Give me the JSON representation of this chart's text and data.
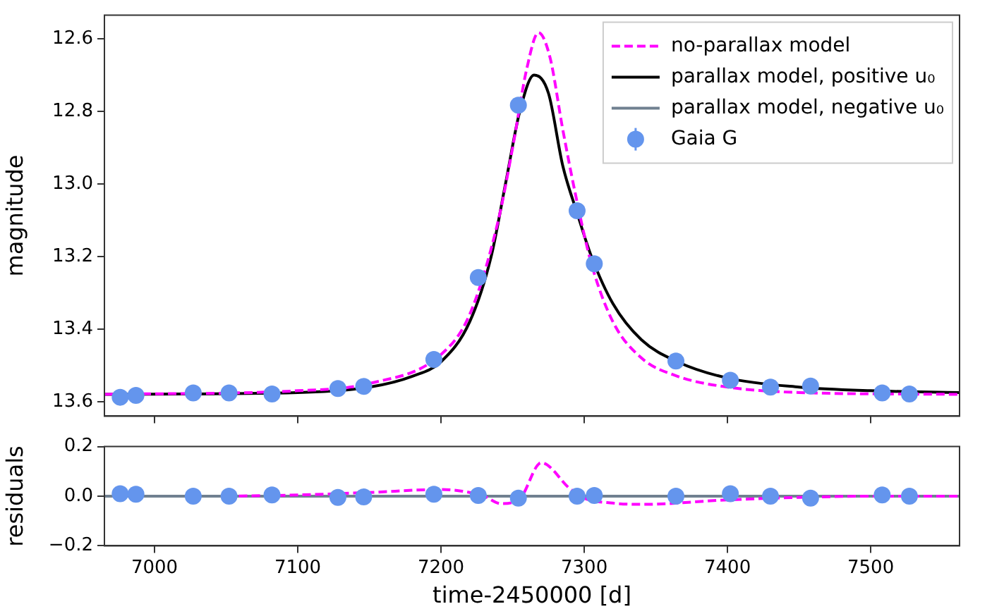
{
  "chart_data": [
    {
      "type": "line",
      "ylabel": "magnitude",
      "xlim": [
        6965,
        7562
      ],
      "ylim": [
        13.64,
        12.535
      ],
      "xticks": [
        7000,
        7100,
        7200,
        7300,
        7400,
        7500
      ],
      "yticks": [
        12.6,
        12.8,
        {
          "value": 13.0,
          "label": "13.0"
        },
        13.2,
        13.4,
        13.6
      ],
      "tick_labels": "y",
      "grid": false,
      "legend": "top right",
      "series": [
        {
          "name": "no-parallax model",
          "color": "#ff00ff",
          "line_style": "dashed",
          "marker": "none",
          "x": [
            6965,
            7100,
            7150,
            7200,
            7220,
            7240,
            7250,
            7260,
            7268,
            7276,
            7285,
            7295,
            7305,
            7320,
            7340,
            7365,
            7400,
            7450,
            7562
          ],
          "values": [
            13.58,
            13.57,
            13.55,
            13.47,
            13.36,
            13.1,
            12.9,
            12.68,
            12.583,
            12.65,
            12.85,
            13.05,
            13.22,
            13.38,
            13.48,
            13.53,
            13.56,
            13.575,
            13.58
          ]
        },
        {
          "name": "parallax model, positive u₀",
          "color": "#000000",
          "line_style": "solid",
          "marker": "none",
          "x": [
            6965,
            7100,
            7150,
            7180,
            7200,
            7220,
            7235,
            7245,
            7255,
            7265,
            7275,
            7285,
            7295,
            7305,
            7320,
            7340,
            7365,
            7400,
            7450,
            7500,
            7562
          ],
          "values": [
            13.58,
            13.575,
            13.56,
            13.53,
            13.49,
            13.38,
            13.2,
            13.0,
            12.8,
            12.7,
            12.75,
            12.95,
            13.08,
            13.2,
            13.33,
            13.43,
            13.49,
            13.535,
            13.56,
            13.57,
            13.575
          ]
        },
        {
          "name": "parallax model, negative u₀",
          "color": "#708090",
          "line_style": "solid",
          "marker": "none"
        },
        {
          "name": "Gaia G",
          "type": "scatter",
          "color": "#6495ed",
          "marker": "circle",
          "x": [
            6976,
            6987,
            7027,
            7052,
            7082,
            7128,
            7146,
            7195,
            7226,
            7254,
            7295,
            7307,
            7364,
            7402,
            7430,
            7458,
            7508,
            7527
          ],
          "values": [
            13.588,
            13.583,
            13.576,
            13.576,
            13.579,
            13.564,
            13.558,
            13.484,
            13.258,
            12.783,
            13.074,
            13.22,
            13.488,
            13.541,
            13.56,
            13.557,
            13.576,
            13.579
          ]
        }
      ]
    },
    {
      "type": "line",
      "xlabel": "time-2450000 [d]",
      "ylabel": "residuals",
      "xlim": [
        6965,
        7562
      ],
      "ylim": [
        -0.2,
        0.2
      ],
      "xticks": [
        7000,
        7100,
        7200,
        7300,
        7400,
        7500
      ],
      "yticks": [
        {
          "value": -0.2,
          "label": "−0.2"
        },
        {
          "value": 0,
          "label": "0.0"
        },
        0.2
      ],
      "grid": false,
      "legend": false,
      "series": [
        {
          "color": "#ff00ff",
          "line_style": "dashed",
          "marker": "none",
          "x": [
            7050,
            7100,
            7150,
            7200,
            7215,
            7230,
            7242,
            7255,
            7270,
            7290,
            7300,
            7320,
            7340,
            7400,
            7450,
            7500,
            7562
          ],
          "values": [
            0,
            0.005,
            0.015,
            0.027,
            0.02,
            0,
            -0.03,
            -0.01,
            0.135,
            0.03,
            -0.008,
            -0.028,
            -0.033,
            -0.015,
            -0.005,
            0,
            0
          ]
        },
        {
          "color": "#708090",
          "line_style": "solid",
          "marker": "none",
          "x": [
            6965,
            7562
          ],
          "values": [
            0,
            0
          ]
        },
        {
          "type": "scatter",
          "color": "#6495ed",
          "marker": "circle",
          "x": [
            6976,
            6987,
            7027,
            7052,
            7082,
            7128,
            7146,
            7195,
            7226,
            7254,
            7295,
            7307,
            7364,
            7402,
            7430,
            7458,
            7508,
            7527
          ],
          "values": [
            0.01,
            0.008,
            0,
            0,
            0.005,
            -0.005,
            -0.003,
            0.008,
            0.003,
            -0.008,
            0,
            0.003,
            0,
            0.01,
            0,
            -0.008,
            0.005,
            0
          ]
        }
      ]
    }
  ]
}
